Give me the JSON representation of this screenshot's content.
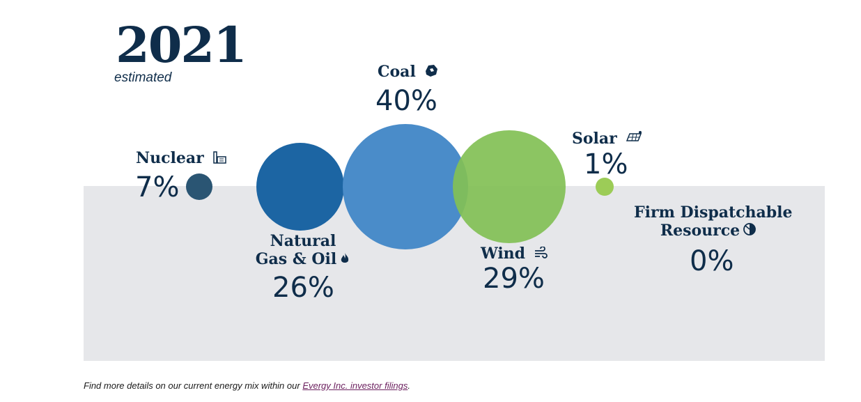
{
  "header": {
    "year": "2021",
    "subtitle": "estimated"
  },
  "chart_data": {
    "type": "bubble",
    "series": [
      {
        "name": "Nuclear",
        "value": 7,
        "label": "7%",
        "color": "#2a5573",
        "icon": "nuclear-plant-icon"
      },
      {
        "name": "Natural Gas & Oil",
        "value": 26,
        "label": "26%",
        "color": "#1c65a3",
        "icon": "flame-icon"
      },
      {
        "name": "Coal",
        "value": 40,
        "label": "40%",
        "color": "#4a8cc9",
        "icon": "coal-icon"
      },
      {
        "name": "Wind",
        "value": 29,
        "label": "29%",
        "color": "#82c055",
        "icon": "wind-icon"
      },
      {
        "name": "Solar",
        "value": 1,
        "label": "1%",
        "color": "#9ccc57",
        "icon": "solar-panel-icon"
      },
      {
        "name": "Firm Dispatchable Resource",
        "value": 0,
        "label": "0%",
        "color": "#0f2d4a",
        "icon": "pie-icon"
      }
    ]
  },
  "labels": {
    "nuclear": "Nuclear",
    "gas_line1": "Natural",
    "gas_line2": "Gas & Oil",
    "coal": "Coal",
    "wind": "Wind",
    "solar": "Solar",
    "firm_line1": "Firm Dispatchable",
    "firm_line2": "Resource"
  },
  "footnote": {
    "text": "Find more details on our current energy mix within our ",
    "link": "Evergy Inc. investor filings",
    "end": "."
  }
}
